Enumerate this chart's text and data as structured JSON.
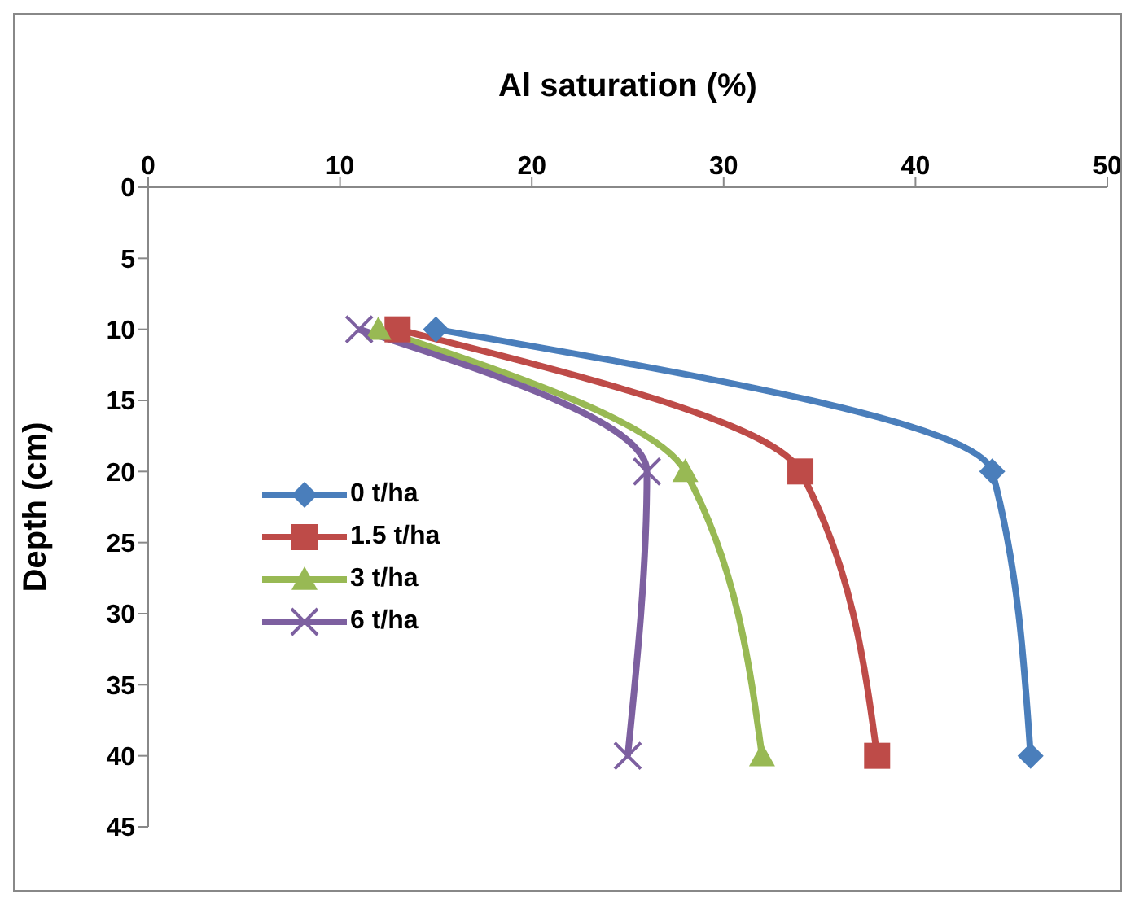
{
  "chart_data": {
    "type": "line",
    "xlabel": "Al saturation (%)",
    "ylabel": "Depth (cm)",
    "xlim": [
      0,
      50
    ],
    "xticks": [
      0,
      10,
      20,
      30,
      40,
      50
    ],
    "ylim": [
      45,
      0
    ],
    "yticks": [
      0,
      5,
      10,
      15,
      20,
      25,
      30,
      35,
      40,
      45
    ],
    "grid": false,
    "legend": "left",
    "series": [
      {
        "name": "0 t/ha",
        "color": "#4a7ebb",
        "marker": "diamond",
        "x": [
          15,
          44,
          46
        ],
        "values": [
          10,
          20,
          40
        ]
      },
      {
        "name": "1.5 t/ha",
        "color": "#be4b48",
        "marker": "square",
        "x": [
          13,
          34,
          38
        ],
        "values": [
          10,
          20,
          40
        ]
      },
      {
        "name": "3 t/ha",
        "color": "#98b954",
        "marker": "triangle",
        "x": [
          12,
          28,
          32
        ],
        "values": [
          10,
          20,
          40
        ]
      },
      {
        "name": "6 t/ha",
        "color": "#7d60a0",
        "marker": "cross",
        "x": [
          11,
          26,
          25
        ],
        "values": [
          10,
          20,
          40
        ]
      }
    ]
  }
}
